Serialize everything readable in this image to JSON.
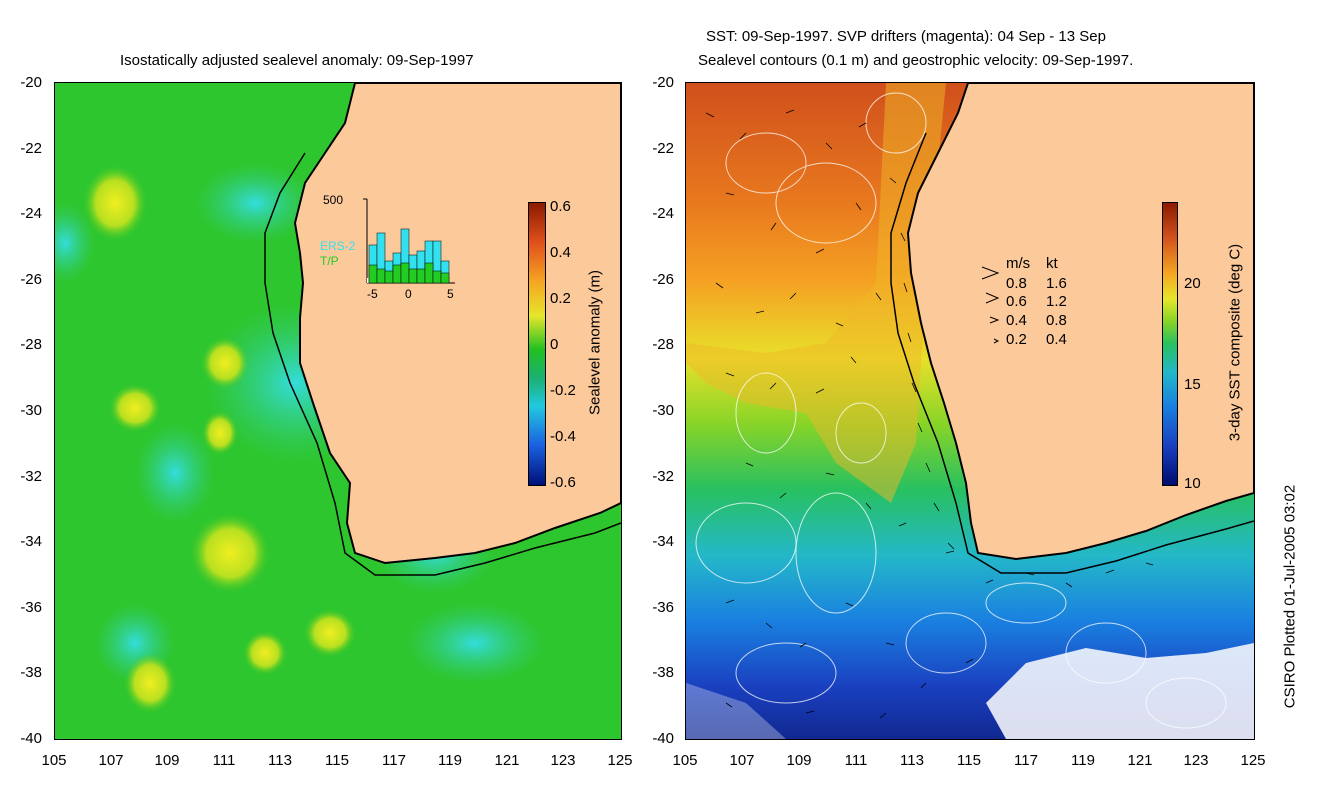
{
  "left_panel": {
    "title": "Isostatically adjusted sealevel anomaly: 09-Sep-1997",
    "colorbar_label": "Sealevel anomaly (m)",
    "colorbar_ticks": [
      "0.6",
      "0.4",
      "0.2",
      "0",
      "-0.2",
      "-0.4",
      "-0.6"
    ],
    "inset": {
      "ymax_label": "500",
      "legend": [
        "ERS-2",
        "T/P"
      ],
      "xticks": [
        "-5",
        "0",
        "5"
      ],
      "colors": {
        "ers2": "#33e0f0",
        "tp": "#22cc22",
        "drifter": "#ff00ff"
      }
    }
  },
  "right_panel": {
    "title_line1": "SST: 09-Sep-1997. SVP drifters (magenta): 04 Sep - 13 Sep",
    "title_line2": "Sealevel contours (0.1 m) and geostrophic velocity: 09-Sep-1997.",
    "colorbar_label": "3-day SST composite (deg C)",
    "colorbar_ticks": [
      "20",
      "15",
      "10"
    ],
    "speed_legend": {
      "header_ms": "m/s",
      "header_kt": "kt",
      "rows": [
        {
          "ms": "0.8",
          "kt": "1.6"
        },
        {
          "ms": "0.6",
          "kt": "1.2"
        },
        {
          "ms": "0.4",
          "kt": "0.8"
        },
        {
          "ms": "0.2",
          "kt": "0.4"
        }
      ]
    }
  },
  "axes": {
    "y_ticks": [
      "-20",
      "-22",
      "-24",
      "-26",
      "-28",
      "-30",
      "-32",
      "-34",
      "-36",
      "-38",
      "-40"
    ],
    "x_ticks": [
      "105",
      "107",
      "109",
      "111",
      "113",
      "115",
      "117",
      "119",
      "121",
      "123",
      "125"
    ]
  },
  "credit": "CSIRO Plotted 01-Jul-2005 03:02",
  "colors": {
    "land": "#fcc99b",
    "ocean_mid": "#22c022"
  }
}
